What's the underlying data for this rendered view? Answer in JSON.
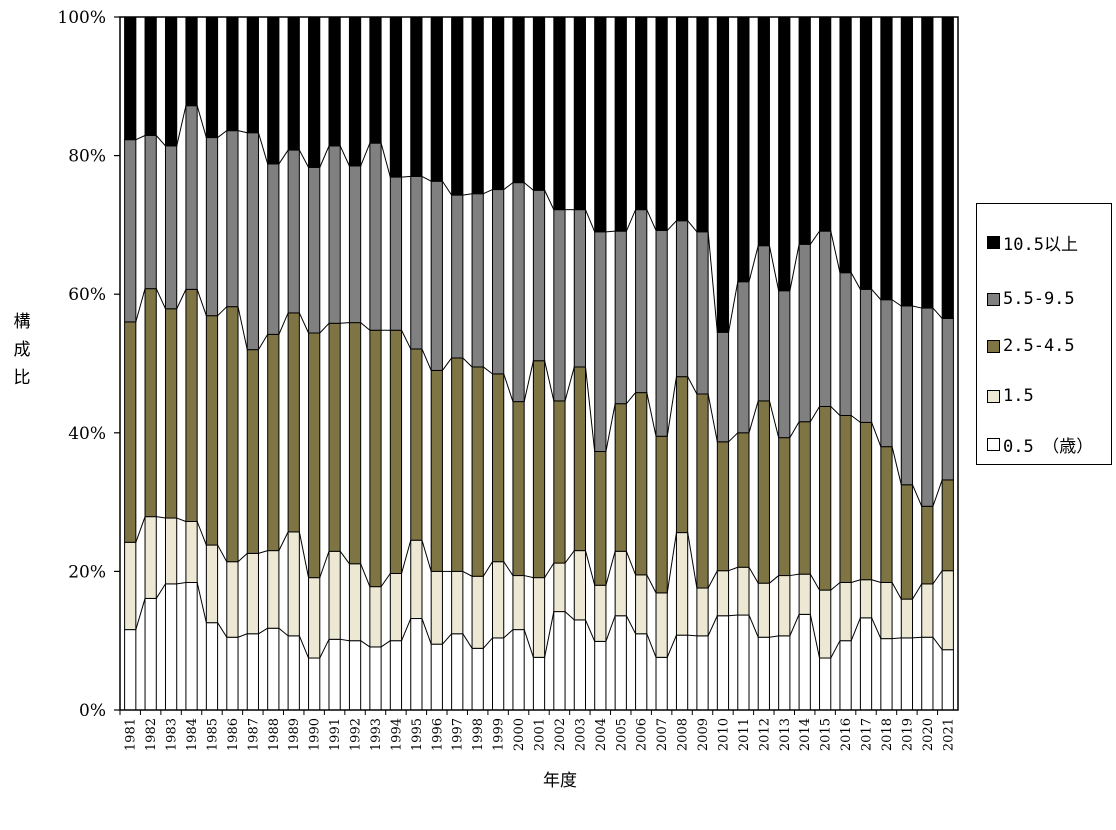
{
  "chart_data": {
    "type": "bar",
    "stacked": true,
    "xlabel": "年度",
    "ylabel": "構成比",
    "ylim": [
      0,
      100
    ],
    "yticks": [
      "0%",
      "20%",
      "40%",
      "60%",
      "80%",
      "100%"
    ],
    "legend_position": "right",
    "categories": [
      "1981",
      "1982",
      "1983",
      "1984",
      "1985",
      "1986",
      "1987",
      "1988",
      "1989",
      "1990",
      "1991",
      "1992",
      "1993",
      "1994",
      "1995",
      "1996",
      "1997",
      "1998",
      "1999",
      "2000",
      "2001",
      "2002",
      "2003",
      "2004",
      "2005",
      "2006",
      "2007",
      "2008",
      "2009",
      "2010",
      "2011",
      "2012",
      "2013",
      "2014",
      "2015",
      "2016",
      "2017",
      "2018",
      "2019",
      "2020",
      "2021"
    ],
    "series": [
      {
        "name": "0.5",
        "color": "#ffffff",
        "values": [
          11.6,
          16.1,
          18.2,
          18.4,
          12.6,
          10.5,
          11.0,
          11.8,
          10.7,
          7.5,
          10.2,
          10.0,
          9.1,
          10.0,
          13.2,
          9.5,
          11.0,
          8.9,
          10.4,
          11.6,
          7.6,
          14.2,
          13.0,
          9.9,
          13.6,
          11.0,
          7.6,
          10.8,
          10.7,
          13.6,
          13.7,
          10.5,
          10.7,
          13.8,
          7.5,
          10.0,
          13.3,
          10.3,
          10.4,
          10.5,
          8.7
        ]
      },
      {
        "name": "1.5",
        "color": "#ece8d4",
        "values": [
          12.6,
          11.8,
          9.5,
          8.8,
          11.2,
          10.9,
          11.6,
          11.2,
          15.0,
          11.6,
          12.7,
          11.1,
          8.7,
          9.7,
          11.3,
          10.5,
          9.0,
          10.4,
          11.0,
          7.8,
          11.5,
          7.0,
          10.0,
          8.1,
          9.3,
          8.5,
          9.3,
          14.8,
          6.9,
          6.5,
          6.9,
          7.8,
          8.7,
          5.8,
          9.8,
          8.4,
          5.5,
          8.1,
          5.6,
          7.7,
          11.4
        ]
      },
      {
        "name": "2.5-4.5",
        "color": "#7f7443",
        "values": [
          31.8,
          32.9,
          30.2,
          33.5,
          33.1,
          36.8,
          29.4,
          31.2,
          31.6,
          35.3,
          32.9,
          34.8,
          37.0,
          35.1,
          27.6,
          29.0,
          30.8,
          30.2,
          27.1,
          25.1,
          31.3,
          23.4,
          26.5,
          19.3,
          21.3,
          26.3,
          22.6,
          22.5,
          28.0,
          18.6,
          19.4,
          26.3,
          19.9,
          22.0,
          26.5,
          24.1,
          22.7,
          19.6,
          16.5,
          11.2,
          13.1
        ]
      },
      {
        "name": "5.5-9.5",
        "color": "#808080",
        "values": [
          26.3,
          22.1,
          23.5,
          26.5,
          25.7,
          25.4,
          31.3,
          24.6,
          23.5,
          23.9,
          25.6,
          22.6,
          27.0,
          22.1,
          24.9,
          27.3,
          23.5,
          25.0,
          26.6,
          31.6,
          24.6,
          27.6,
          22.7,
          31.7,
          24.9,
          26.4,
          29.7,
          22.5,
          23.4,
          15.8,
          21.8,
          22.4,
          21.2,
          25.6,
          25.3,
          20.6,
          19.2,
          21.2,
          25.8,
          28.6,
          23.3
        ]
      },
      {
        "name": "10.5以上",
        "color": "#000000",
        "values": [
          17.7,
          17.1,
          18.6,
          12.8,
          17.4,
          16.4,
          16.7,
          21.2,
          19.2,
          21.7,
          18.6,
          21.5,
          18.2,
          23.1,
          23.0,
          23.7,
          25.7,
          25.5,
          24.9,
          23.9,
          25.0,
          27.8,
          27.8,
          31.0,
          30.9,
          27.8,
          30.8,
          29.4,
          31.0,
          45.5,
          38.2,
          33.0,
          39.5,
          32.8,
          30.9,
          36.9,
          39.3,
          40.8,
          41.7,
          42.0,
          43.5
        ]
      }
    ]
  },
  "legend": {
    "items": [
      "10.5以上",
      "5.5-9.5",
      "2.5-4.5",
      "1.5",
      "0.5　（歳）"
    ]
  }
}
